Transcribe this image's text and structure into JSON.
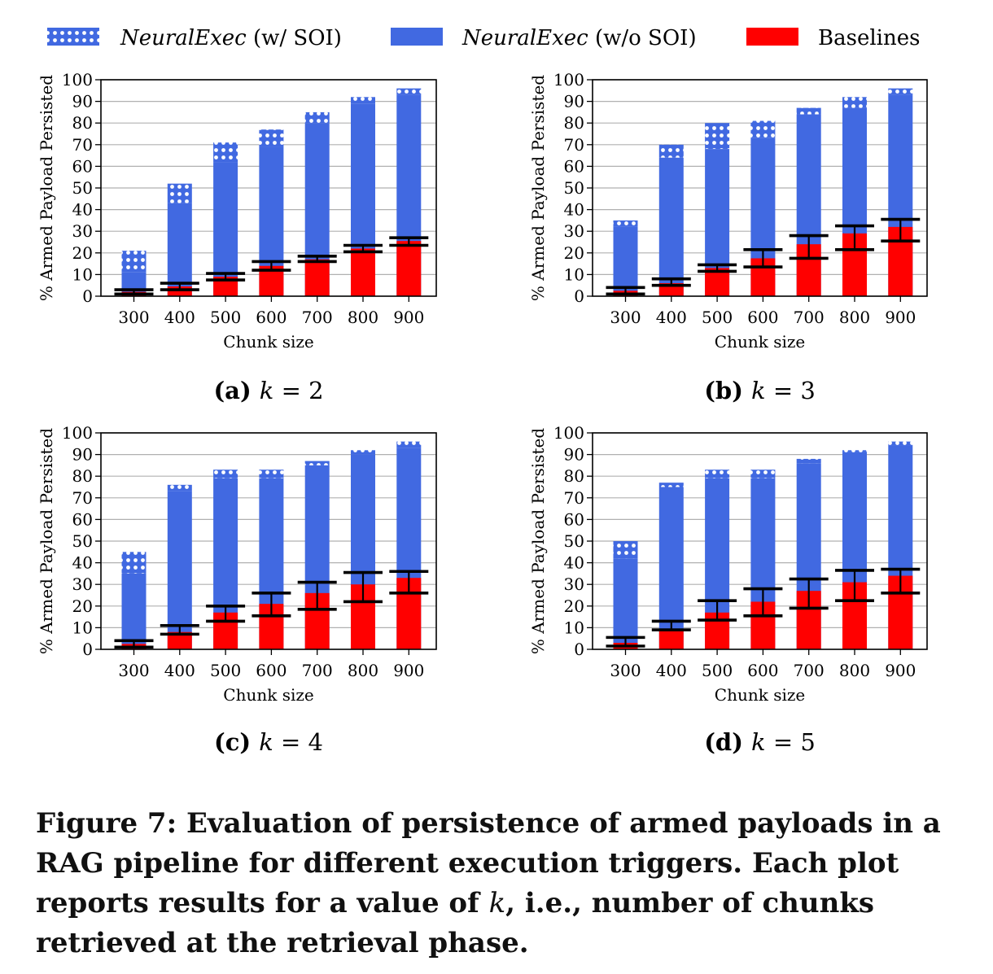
{
  "legend": {
    "items": [
      {
        "label": "NeuralExec",
        "suffix": " (w/ SOI)",
        "style": "dotted"
      },
      {
        "label": "NeuralExec",
        "suffix": " (w/o SOI)",
        "style": "solid"
      },
      {
        "label": "Baselines",
        "suffix": "",
        "style": "red"
      }
    ]
  },
  "colors": {
    "blue": "#4169e1",
    "red": "#ff0000",
    "errorbar": "#000000",
    "grid": "#b0b0b0"
  },
  "chart_data": [
    {
      "type": "bar",
      "panel": "(a)",
      "k": "2",
      "categories": [
        "300",
        "400",
        "500",
        "600",
        "700",
        "800",
        "900"
      ],
      "xlabel": "Chunk size",
      "ylabel": "% Armed Payload Persisted",
      "ylim": [
        0,
        100
      ],
      "yticks": [
        "0",
        "10",
        "20",
        "30",
        "40",
        "50",
        "60",
        "70",
        "80",
        "90",
        "100"
      ],
      "series": [
        {
          "name": "NeuralExec (w/ SOI)",
          "values": [
            21,
            52,
            71,
            77,
            85,
            92,
            96
          ]
        },
        {
          "name": "NeuralExec (w/o SOI)",
          "values": [
            11,
            43,
            62,
            69,
            80,
            89,
            93
          ]
        },
        {
          "name": "Baselines",
          "values": [
            2,
            4.5,
            9,
            14,
            17,
            22,
            25.5
          ],
          "err_low": [
            1,
            3,
            7.5,
            12,
            16,
            20.5,
            23.5
          ],
          "err_high": [
            3,
            6,
            10.5,
            16,
            18.5,
            23.5,
            27
          ]
        }
      ]
    },
    {
      "type": "bar",
      "panel": "(b)",
      "k": "3",
      "categories": [
        "300",
        "400",
        "500",
        "600",
        "700",
        "800",
        "900"
      ],
      "xlabel": "Chunk size",
      "ylabel": "% Armed Payload Persisted",
      "ylim": [
        0,
        100
      ],
      "yticks": [
        "0",
        "10",
        "20",
        "30",
        "40",
        "50",
        "60",
        "70",
        "80",
        "90",
        "100"
      ],
      "series": [
        {
          "name": "NeuralExec (w/ SOI)",
          "values": [
            35,
            70,
            80,
            81,
            87,
            92,
            96
          ]
        },
        {
          "name": "NeuralExec (w/o SOI)",
          "values": [
            32,
            64,
            68,
            73,
            84,
            87,
            93
          ]
        },
        {
          "name": "Baselines",
          "values": [
            2.5,
            6,
            13,
            17.5,
            24,
            29,
            32
          ],
          "err_low": [
            1,
            5,
            11.5,
            13.5,
            17.5,
            21.5,
            25.5
          ],
          "err_high": [
            4,
            8,
            14.5,
            21.5,
            28,
            32.5,
            35.5
          ]
        }
      ]
    },
    {
      "type": "bar",
      "panel": "(c)",
      "k": "4",
      "categories": [
        "300",
        "400",
        "500",
        "600",
        "700",
        "800",
        "900"
      ],
      "xlabel": "Chunk size",
      "ylabel": "% Armed Payload Persisted",
      "ylim": [
        0,
        100
      ],
      "yticks": [
        "0",
        "10",
        "20",
        "30",
        "40",
        "50",
        "60",
        "70",
        "80",
        "90",
        "100"
      ],
      "series": [
        {
          "name": "NeuralExec (w/ SOI)",
          "values": [
            45,
            76,
            83,
            83,
            87,
            92,
            96
          ]
        },
        {
          "name": "NeuralExec (w/o SOI)",
          "values": [
            35,
            73,
            79,
            79,
            85,
            90,
            93
          ]
        },
        {
          "name": "Baselines",
          "values": [
            2.5,
            8,
            17,
            21,
            26,
            30,
            33
          ],
          "err_low": [
            1,
            7,
            13,
            15.5,
            18.5,
            22,
            26
          ],
          "err_high": [
            4,
            11,
            20,
            26,
            31,
            35.5,
            36
          ]
        }
      ]
    },
    {
      "type": "bar",
      "panel": "(d)",
      "k": "5",
      "categories": [
        "300",
        "400",
        "500",
        "600",
        "700",
        "800",
        "900"
      ],
      "xlabel": "Chunk size",
      "ylabel": "% Armed Payload Persisted",
      "ylim": [
        0,
        100
      ],
      "yticks": [
        "0",
        "10",
        "20",
        "30",
        "40",
        "50",
        "60",
        "70",
        "80",
        "90",
        "100"
      ],
      "series": [
        {
          "name": "NeuralExec (w/ SOI)",
          "values": [
            50,
            77,
            83,
            83,
            88,
            92,
            96
          ]
        },
        {
          "name": "NeuralExec (w/o SOI)",
          "values": [
            42,
            75,
            79,
            79,
            86,
            91,
            94
          ]
        },
        {
          "name": "Baselines",
          "values": [
            3,
            9,
            17,
            22,
            27,
            31,
            34
          ],
          "err_low": [
            1.5,
            9,
            13.5,
            15.5,
            19,
            22.5,
            26
          ],
          "err_high": [
            5.5,
            13,
            22.5,
            28,
            32.5,
            36.5,
            37
          ]
        }
      ]
    }
  ],
  "caption": {
    "part1": "Figure 7: Evaluation of persistence of armed payloads in a RAG pipeline for different execution triggers. Each plot reports results for a value of ",
    "k": "k",
    "part2": ", i.e., number of chunks retrieved at the retrieval phase."
  }
}
